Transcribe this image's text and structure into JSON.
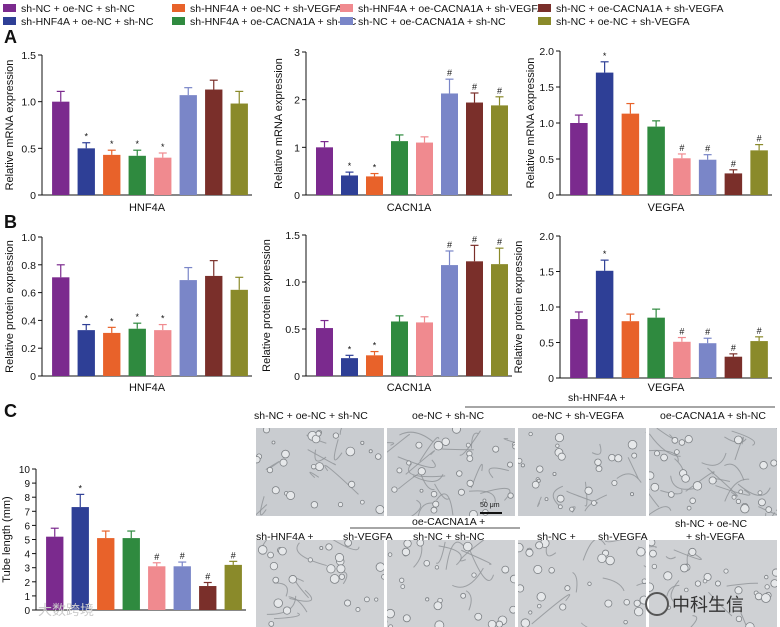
{
  "colors": {
    "sh-NC + oe-NC + sh-NC": "#7b2a8e",
    "sh-HNF4A + oe-NC + sh-NC": "#2e3f96",
    "sh-HNF4A + oe-NC + sh-VEGFA": "#e8622a",
    "sh-HNF4A + oe-CACNA1A + sh-NC": "#2f8a3f",
    "sh-HNF4A + oe-CACNA1A + sh-VEGFA": "#f08a8f",
    "sh-NC + oe-CACNA1A + sh-NC": "#7a86c8",
    "sh-NC + oe-CACNA1A + sh-VEGFA": "#7a2f2a",
    "sh-NC + oe-NC + sh-VEGFA": "#8a8a2a"
  },
  "legend": [
    "sh-NC + oe-NC + sh-NC",
    "sh-HNF4A + oe-NC + sh-NC",
    "sh-HNF4A + oe-NC + sh-VEGFA",
    "sh-HNF4A + oe-CACNA1A + sh-NC",
    "sh-HNF4A + oe-CACNA1A + sh-VEGFA",
    "sh-NC + oe-CACNA1A + sh-NC",
    "sh-NC + oe-CACNA1A + sh-VEGFA",
    "sh-NC + oe-NC + sh-VEGFA"
  ],
  "panel_letters": {
    "a": "A",
    "b": "B",
    "c": "C"
  },
  "chart_data": [
    {
      "id": "A1",
      "type": "bar",
      "xlabel": "HNF4A",
      "ylabel": "Relative mRNA expression",
      "ylim": [
        0,
        1.5
      ],
      "yticks": [
        "0",
        "0.5",
        "1.0",
        "1.5"
      ],
      "values": [
        1.0,
        0.5,
        0.43,
        0.42,
        0.4,
        1.07,
        1.13,
        0.98
      ],
      "errors": [
        0.11,
        0.06,
        0.05,
        0.06,
        0.05,
        0.08,
        0.1,
        0.13
      ],
      "marks": [
        "",
        "*",
        "*",
        "*",
        "*",
        "",
        "",
        ""
      ]
    },
    {
      "id": "A2",
      "type": "bar",
      "xlabel": "CACN1A",
      "ylabel": "Relative mRNA expression",
      "ylim": [
        0,
        3
      ],
      "yticks": [
        "0",
        "1",
        "2",
        "3"
      ],
      "values": [
        1.0,
        0.41,
        0.39,
        1.13,
        1.1,
        2.13,
        1.94,
        1.88
      ],
      "errors": [
        0.12,
        0.07,
        0.06,
        0.13,
        0.12,
        0.3,
        0.2,
        0.18
      ],
      "marks": [
        "",
        "*",
        "*",
        "",
        "",
        "#",
        "#",
        "#"
      ]
    },
    {
      "id": "A3",
      "type": "bar",
      "xlabel": "VEGFA",
      "ylabel": "Relative mRNA expression",
      "ylim": [
        0,
        2.0
      ],
      "yticks": [
        "0",
        "0.5",
        "1.0",
        "1.5",
        "2.0"
      ],
      "values": [
        1.0,
        1.7,
        1.13,
        0.95,
        0.51,
        0.49,
        0.3,
        0.62
      ],
      "errors": [
        0.11,
        0.15,
        0.14,
        0.08,
        0.06,
        0.07,
        0.05,
        0.08
      ],
      "marks": [
        "",
        "*",
        "",
        "",
        "#",
        "#",
        "#",
        "#"
      ]
    },
    {
      "id": "B1",
      "type": "bar",
      "xlabel": "HNF4A",
      "ylabel": "Relative protein expression",
      "ylim": [
        0,
        1.0
      ],
      "yticks": [
        "0",
        "0.2",
        "0.4",
        "0.6",
        "0.8",
        "1.0"
      ],
      "values": [
        0.71,
        0.33,
        0.31,
        0.34,
        0.33,
        0.69,
        0.72,
        0.62
      ],
      "errors": [
        0.09,
        0.04,
        0.04,
        0.04,
        0.04,
        0.09,
        0.11,
        0.09
      ],
      "marks": [
        "",
        "*",
        "*",
        "*",
        "*",
        "",
        "",
        ""
      ]
    },
    {
      "id": "B2",
      "type": "bar",
      "xlabel": "CACN1A",
      "ylabel": "Relative protein expression",
      "ylim": [
        0,
        1.5
      ],
      "yticks": [
        "0",
        "0.5",
        "1.0",
        "1.5"
      ],
      "values": [
        0.51,
        0.19,
        0.22,
        0.58,
        0.57,
        1.18,
        1.22,
        1.19
      ],
      "errors": [
        0.08,
        0.03,
        0.04,
        0.06,
        0.06,
        0.15,
        0.17,
        0.17
      ],
      "marks": [
        "",
        "*",
        "*",
        "",
        "",
        "#",
        "#",
        "#"
      ]
    },
    {
      "id": "B3",
      "type": "bar",
      "xlabel": "VEGFA",
      "ylabel": "Relative protein expression",
      "ylim": [
        0,
        2.0
      ],
      "yticks": [
        "0",
        "0.5",
        "1.0",
        "1.5",
        "2.0"
      ],
      "values": [
        0.83,
        1.51,
        0.8,
        0.85,
        0.51,
        0.49,
        0.3,
        0.52
      ],
      "errors": [
        0.1,
        0.15,
        0.1,
        0.12,
        0.06,
        0.07,
        0.04,
        0.06
      ],
      "marks": [
        "",
        "*",
        "",
        "",
        "#",
        "#",
        "#",
        "#"
      ]
    },
    {
      "id": "C",
      "type": "bar",
      "xlabel": "",
      "ylabel": "Tube length (mm)",
      "ylim": [
        0,
        10
      ],
      "yticks": [
        "0",
        "1",
        "2",
        "3",
        "4",
        "5",
        "6",
        "7",
        "8",
        "9",
        "10"
      ],
      "values": [
        5.2,
        7.3,
        5.1,
        5.1,
        3.1,
        3.1,
        1.7,
        3.2
      ],
      "errors": [
        0.6,
        0.9,
        0.5,
        0.5,
        0.25,
        0.3,
        0.25,
        0.25
      ],
      "marks": [
        "",
        "*",
        "",
        "",
        "#",
        "#",
        "#",
        "#"
      ]
    }
  ],
  "micrographs": {
    "row1_labels": [
      "sh-NC + oe-NC + sh-NC",
      "oe-NC + sh-NC",
      "oe-NC + sh-VEGFA",
      "oe-CACNA1A + sh-NC"
    ],
    "row1_group_label": "sh-HNF4A +",
    "row2_labels": [
      "sh-HNF4A +",
      "sh-VEGFA",
      "sh-NC + sh-NC",
      "sh-NC +",
      "sh-VEGFA"
    ],
    "row2_group_label": "oe-CACNA1A +",
    "row2_last_label_1": "sh-NC + oe-NC",
    "row2_last_label_2": "+ sh-VEGFA",
    "scale_bar": "50 μm"
  },
  "watermarks": {
    "right": "中科生信",
    "left": "大数跨境"
  }
}
